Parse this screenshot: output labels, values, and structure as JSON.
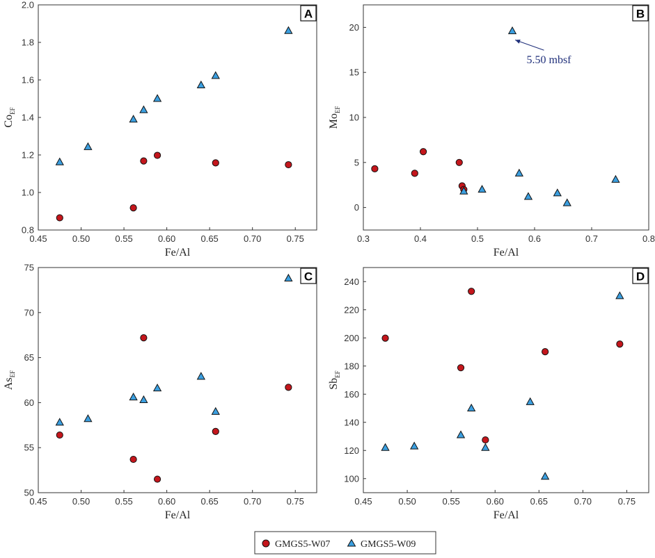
{
  "colors": {
    "w07": "#c4161c",
    "w09": "#3b9fe0",
    "annotation": "#1f2f7a"
  },
  "legend": {
    "w07_label": "GMGS5-W07",
    "w09_label": "GMGS5-W09"
  },
  "chart_data": [
    {
      "type": "scatter",
      "panel": "A",
      "xlabel": "Fe/Al",
      "ylabel_main": "Co",
      "ylabel_sub": "EF",
      "xlim": [
        0.45,
        0.775
      ],
      "ylim": [
        0.8,
        2.0
      ],
      "xticks": [
        0.45,
        0.5,
        0.55,
        0.6,
        0.65,
        0.7,
        0.75
      ],
      "xtick_labels": [
        "0.45",
        "0.50",
        "0.55",
        "0.60",
        "0.65",
        "0.70",
        "0.75"
      ],
      "yticks": [
        0.8,
        1.0,
        1.2,
        1.4,
        1.6,
        1.8,
        2.0
      ],
      "ytick_labels": [
        "0.8",
        "1.0",
        "1.2",
        "1.4",
        "1.6",
        "1.8",
        "2.0"
      ],
      "series": [
        {
          "name": "GMGS5-W07",
          "marker": "circle",
          "points": [
            [
              0.475,
              0.865
            ],
            [
              0.561,
              0.918
            ],
            [
              0.573,
              1.168
            ],
            [
              0.589,
              1.198
            ],
            [
              0.657,
              1.158
            ],
            [
              0.742,
              1.148
            ]
          ]
        },
        {
          "name": "GMGS5-W09",
          "marker": "triangle",
          "points": [
            [
              0.475,
              1.162
            ],
            [
              0.508,
              1.243
            ],
            [
              0.561,
              1.39
            ],
            [
              0.573,
              1.44
            ],
            [
              0.589,
              1.5
            ],
            [
              0.64,
              1.572
            ],
            [
              0.657,
              1.622
            ],
            [
              0.742,
              1.862
            ]
          ]
        }
      ],
      "annotations": []
    },
    {
      "type": "scatter",
      "panel": "B",
      "xlabel": "Fe/Al",
      "ylabel_main": "Mo",
      "ylabel_sub": "EF",
      "xlim": [
        0.3,
        0.8
      ],
      "ylim": [
        -2.5,
        22.5
      ],
      "xticks": [
        0.3,
        0.4,
        0.5,
        0.6,
        0.7,
        0.8
      ],
      "xtick_labels": [
        "0.3",
        "0.4",
        "0.5",
        "0.6",
        "0.7",
        "0.8"
      ],
      "yticks": [
        0,
        5,
        10,
        15,
        20
      ],
      "ytick_labels": [
        "0",
        "5",
        "10",
        "15",
        "20"
      ],
      "series": [
        {
          "name": "GMGS5-W07",
          "marker": "circle",
          "points": [
            [
              0.32,
              4.3
            ],
            [
              0.39,
              3.8
            ],
            [
              0.405,
              6.2
            ],
            [
              0.468,
              5.0
            ],
            [
              0.473,
              2.4
            ],
            [
              0.476,
              2.0
            ]
          ]
        },
        {
          "name": "GMGS5-W09",
          "marker": "triangle",
          "points": [
            [
              0.476,
              1.8
            ],
            [
              0.508,
              2.0
            ],
            [
              0.561,
              19.6
            ],
            [
              0.573,
              3.8
            ],
            [
              0.589,
              1.2
            ],
            [
              0.64,
              1.6
            ],
            [
              0.657,
              0.5
            ],
            [
              0.742,
              3.1
            ]
          ]
        }
      ],
      "annotations": [
        {
          "text": "5.50 mbsf",
          "x": 0.625,
          "y": 16.0,
          "target": [
            0.566,
            18.6
          ]
        }
      ]
    },
    {
      "type": "scatter",
      "panel": "C",
      "xlabel": "Fe/Al",
      "ylabel_main": "As",
      "ylabel_sub": "EF",
      "xlim": [
        0.45,
        0.775
      ],
      "ylim": [
        50,
        75
      ],
      "xticks": [
        0.45,
        0.5,
        0.55,
        0.6,
        0.65,
        0.7,
        0.75
      ],
      "xtick_labels": [
        "0.45",
        "0.50",
        "0.55",
        "0.60",
        "0.65",
        "0.70",
        "0.75"
      ],
      "yticks": [
        50,
        55,
        60,
        65,
        70,
        75
      ],
      "ytick_labels": [
        "50",
        "55",
        "60",
        "65",
        "70",
        "75"
      ],
      "series": [
        {
          "name": "GMGS5-W07",
          "marker": "circle",
          "points": [
            [
              0.475,
              56.4
            ],
            [
              0.561,
              53.7
            ],
            [
              0.573,
              67.2
            ],
            [
              0.589,
              51.5
            ],
            [
              0.657,
              56.8
            ],
            [
              0.742,
              61.7
            ]
          ]
        },
        {
          "name": "GMGS5-W09",
          "marker": "triangle",
          "points": [
            [
              0.475,
              57.8
            ],
            [
              0.508,
              58.2
            ],
            [
              0.561,
              60.6
            ],
            [
              0.573,
              60.3
            ],
            [
              0.589,
              61.6
            ],
            [
              0.64,
              62.9
            ],
            [
              0.657,
              59.0
            ],
            [
              0.742,
              73.8
            ]
          ]
        }
      ],
      "annotations": []
    },
    {
      "type": "scatter",
      "panel": "D",
      "xlabel": "Fe/Al",
      "ylabel_main": "Sb",
      "ylabel_sub": "EF",
      "xlim": [
        0.45,
        0.775
      ],
      "ylim": [
        90,
        250
      ],
      "xticks": [
        0.45,
        0.5,
        0.55,
        0.6,
        0.65,
        0.7,
        0.75
      ],
      "xtick_labels": [
        "0.45",
        "0.50",
        "0.55",
        "0.60",
        "0.65",
        "0.70",
        "0.75"
      ],
      "yticks": [
        100,
        120,
        140,
        160,
        180,
        200,
        220,
        240
      ],
      "ytick_labels": [
        "100",
        "120",
        "140",
        "160",
        "180",
        "200",
        "220",
        "240"
      ],
      "series": [
        {
          "name": "GMGS5-W07",
          "marker": "circle",
          "points": [
            [
              0.475,
              199.8
            ],
            [
              0.561,
              178.8
            ],
            [
              0.573,
              233.1
            ],
            [
              0.589,
              127.5
            ],
            [
              0.657,
              190.2
            ],
            [
              0.742,
              195.6
            ]
          ]
        },
        {
          "name": "GMGS5-W09",
          "marker": "triangle",
          "points": [
            [
              0.475,
              122.0
            ],
            [
              0.508,
              123.0
            ],
            [
              0.561,
              131.0
            ],
            [
              0.573,
              150.0
            ],
            [
              0.589,
              122.0
            ],
            [
              0.64,
              154.5
            ],
            [
              0.657,
              101.5
            ],
            [
              0.742,
              229.8
            ]
          ]
        }
      ],
      "annotations": []
    }
  ]
}
